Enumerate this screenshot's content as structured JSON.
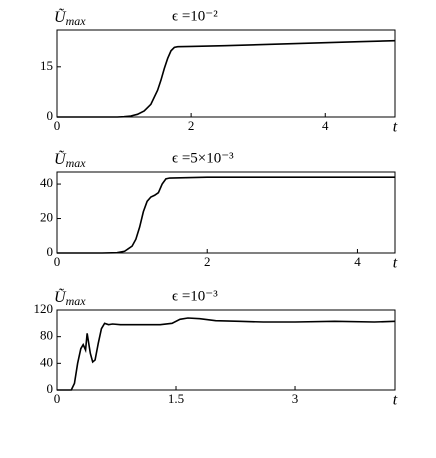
{
  "chart_data": [
    {
      "type": "line",
      "title": "ϵ =10⁻²",
      "ylabel": "Ũ",
      "ylabel_subscript": "max",
      "xlabel": "t",
      "x": [
        0,
        0.5,
        0.9,
        1.0,
        1.1,
        1.2,
        1.3,
        1.4,
        1.5,
        1.55,
        1.6,
        1.65,
        1.7,
        1.75,
        1.8,
        2,
        2.5,
        3,
        3.5,
        4,
        4.5,
        5.04
      ],
      "series": [
        {
          "color": "#000000",
          "values": [
            0,
            0,
            0,
            0.1,
            0.3,
            0.8,
            1.8,
            3.8,
            8,
            11,
            14.5,
            17.5,
            19.8,
            20.8,
            21,
            21.1,
            21.3,
            21.6,
            21.9,
            22.2,
            22.5,
            22.8
          ]
        }
      ],
      "xlim": [
        0,
        5.04
      ],
      "xticks": [
        0,
        2,
        4
      ],
      "ylim": [
        0,
        26
      ],
      "yticks": [
        0,
        15
      ]
    },
    {
      "type": "line",
      "title": "ϵ =5×10⁻³",
      "ylabel": "Ũ",
      "ylabel_subscript": "max",
      "xlabel": "t",
      "x": [
        0,
        0.6,
        0.8,
        0.9,
        1.0,
        1.05,
        1.1,
        1.15,
        1.2,
        1.25,
        1.3,
        1.35,
        1.4,
        1.45,
        1.5,
        2,
        3,
        4,
        4.5
      ],
      "series": [
        {
          "color": "#000000",
          "values": [
            0,
            0,
            0.2,
            1,
            4,
            8,
            15,
            24,
            30,
            32.5,
            33.5,
            35,
            40,
            43,
            43.5,
            44,
            44,
            44,
            44
          ]
        }
      ],
      "xlim": [
        0,
        4.5
      ],
      "xticks": [
        0,
        2,
        4
      ],
      "ylim": [
        0,
        47
      ],
      "yticks": [
        0,
        20,
        40
      ]
    },
    {
      "type": "line",
      "title": "ϵ =10⁻³",
      "ylabel": "Ũ",
      "ylabel_subscript": "max",
      "xlabel": "t",
      "x": [
        0,
        0.18,
        0.22,
        0.26,
        0.3,
        0.33,
        0.36,
        0.38,
        0.4,
        0.42,
        0.45,
        0.48,
        0.52,
        0.56,
        0.6,
        0.65,
        0.7,
        0.8,
        1.0,
        1.3,
        1.45,
        1.55,
        1.65,
        1.8,
        2.0,
        2.3,
        2.6,
        3.0,
        3.5,
        4.0,
        4.26
      ],
      "series": [
        {
          "color": "#000000",
          "values": [
            0,
            0,
            10,
            40,
            62,
            68,
            60,
            85,
            70,
            55,
            42,
            45,
            70,
            92,
            100,
            98,
            99,
            98,
            98,
            98,
            100,
            106,
            108,
            107,
            104,
            103,
            102,
            102,
            103,
            102,
            103
          ]
        }
      ],
      "xlim": [
        0,
        4.26
      ],
      "xticks": [
        0,
        1.5,
        3
      ],
      "ylim": [
        0,
        120
      ],
      "yticks": [
        0,
        40,
        80,
        120
      ]
    }
  ]
}
